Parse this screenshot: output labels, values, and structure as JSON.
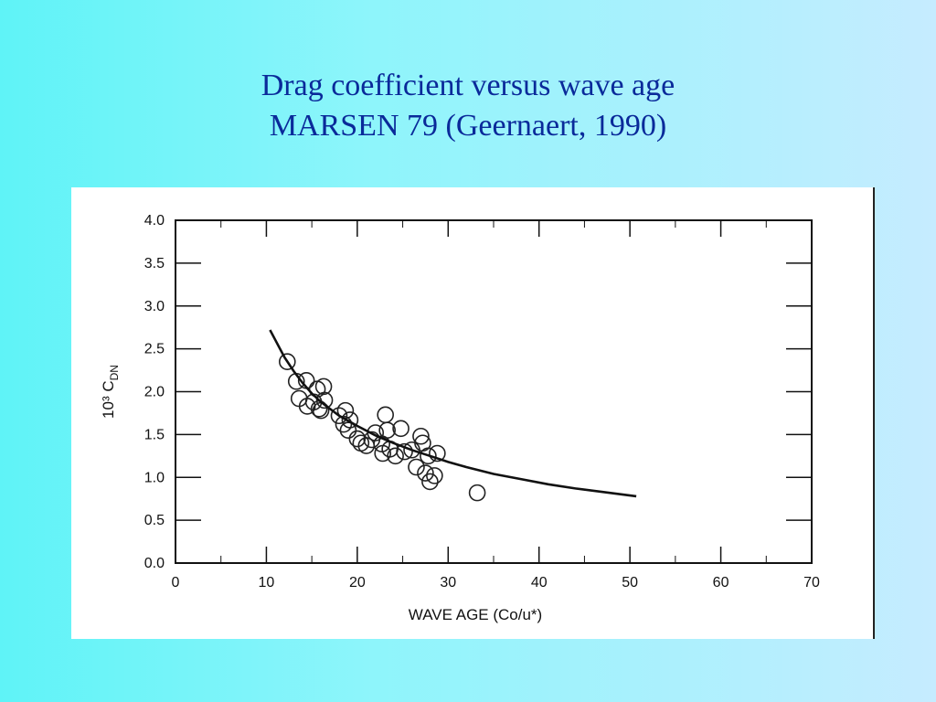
{
  "slide": {
    "title_line1": "Drag coefficient versus wave age",
    "title_line2": "MARSEN 79 (Geernaert, 1990)"
  },
  "chart_data": {
    "type": "scatter",
    "title": "",
    "xlabel": "WAVE AGE (Co/u*)",
    "ylabel": "10³ C_DN",
    "xlim": [
      0,
      70
    ],
    "ylim": [
      0,
      4.0
    ],
    "x_ticks": [
      "0",
      "10",
      "20",
      "30",
      "40",
      "50",
      "60",
      "70"
    ],
    "y_ticks": [
      "0.0",
      "0.5",
      "1.0",
      "1.5",
      "2.0",
      "2.5",
      "3.0",
      "3.5",
      "4.0"
    ],
    "grid": false,
    "series": [
      {
        "kind": "points",
        "marker": "open-circle",
        "points": [
          [
            12.3,
            2.35
          ],
          [
            13.3,
            2.12
          ],
          [
            14.4,
            2.13
          ],
          [
            15.6,
            2.03
          ],
          [
            16.3,
            2.06
          ],
          [
            13.6,
            1.92
          ],
          [
            14.5,
            1.83
          ],
          [
            15.2,
            1.88
          ],
          [
            15.8,
            1.8
          ],
          [
            16.4,
            1.9
          ],
          [
            16.0,
            1.78
          ],
          [
            18.0,
            1.72
          ],
          [
            18.7,
            1.78
          ],
          [
            19.2,
            1.67
          ],
          [
            18.5,
            1.62
          ],
          [
            19.0,
            1.55
          ],
          [
            20.0,
            1.45
          ],
          [
            20.4,
            1.4
          ],
          [
            21.0,
            1.37
          ],
          [
            21.6,
            1.44
          ],
          [
            22.0,
            1.52
          ],
          [
            22.7,
            1.39
          ],
          [
            23.1,
            1.73
          ],
          [
            23.3,
            1.55
          ],
          [
            22.8,
            1.28
          ],
          [
            23.6,
            1.33
          ],
          [
            24.2,
            1.25
          ],
          [
            24.8,
            1.57
          ],
          [
            25.2,
            1.3
          ],
          [
            26.0,
            1.32
          ],
          [
            26.5,
            1.12
          ],
          [
            27.0,
            1.48
          ],
          [
            27.2,
            1.4
          ],
          [
            27.5,
            1.05
          ],
          [
            27.8,
            1.25
          ],
          [
            28.0,
            0.95
          ],
          [
            28.5,
            1.02
          ],
          [
            28.8,
            1.28
          ],
          [
            33.2,
            0.82
          ]
        ]
      },
      {
        "kind": "fit-curve",
        "x": [
          10.4,
          11,
          12,
          13,
          14,
          15,
          16,
          18,
          20,
          22,
          24,
          26,
          28,
          30,
          32,
          35,
          38,
          41,
          44,
          47,
          50.7
        ],
        "y": [
          2.72,
          2.6,
          2.4,
          2.24,
          2.1,
          1.98,
          1.88,
          1.72,
          1.6,
          1.49,
          1.4,
          1.32,
          1.25,
          1.18,
          1.12,
          1.04,
          0.98,
          0.92,
          0.87,
          0.83,
          0.78
        ]
      }
    ]
  }
}
